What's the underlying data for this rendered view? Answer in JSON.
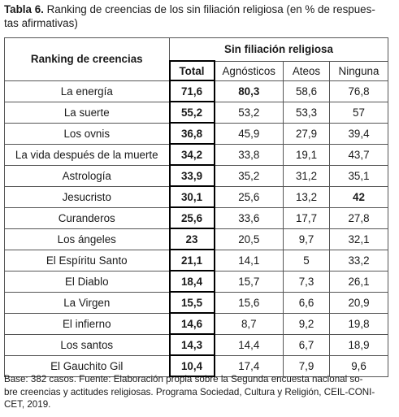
{
  "caption": {
    "label": "Tabla 6.",
    "lines": [
      "Ranking de creencias de los sin filiación religiosa (en % de respues-",
      "tas afirmativas)"
    ]
  },
  "table": {
    "row_header": "Ranking de creencias",
    "group_header": "Sin filiación religiosa",
    "columns": [
      "Total",
      "Agnósticos",
      "Ateos",
      "Ninguna"
    ],
    "rows": [
      [
        "La energía",
        "71,6",
        "80,3",
        "58,6",
        "76,8"
      ],
      [
        "La suerte",
        "55,2",
        "53,2",
        "53,3",
        "57"
      ],
      [
        "Los ovnis",
        "36,8",
        "45,9",
        "27,9",
        "39,4"
      ],
      [
        "La vida después de la muerte",
        "34,2",
        "33,8",
        "19,1",
        "43,7"
      ],
      [
        "Astrología",
        "33,9",
        "35,2",
        "31,2",
        "35,1"
      ],
      [
        "Jesucristo",
        "30,1",
        "25,6",
        "13,2",
        "42"
      ],
      [
        "Curanderos",
        "25,6",
        "33,6",
        "17,7",
        "27,8"
      ],
      [
        "Los ángeles",
        "23",
        "20,5",
        "9,7",
        "32,1"
      ],
      [
        "El Espíritu Santo",
        "21,1",
        "14,1",
        "5",
        "33,2"
      ],
      [
        "El Diablo",
        "18,4",
        "15,7",
        "7,3",
        "26,1"
      ],
      [
        "La Virgen",
        "15,5",
        "15,6",
        "6,6",
        "20,9"
      ],
      [
        "El infierno",
        "14,6",
        "8,7",
        "9,2",
        "19,8"
      ],
      [
        "Los santos",
        "14,3",
        "14,4",
        "6,7",
        "18,9"
      ],
      [
        "El Gauchito Gil",
        "10,4",
        "17,4",
        "7,9",
        "9,6"
      ]
    ]
  },
  "footnote": {
    "lines": [
      "Base: 382 casos. Fuente: Elaboración propia sobre la Segunda encuesta nacional so-",
      "bre creencias y actitudes religiosas. Programa Sociedad, Cultura y Religión, CEIL-CONI-",
      "CET, 2019."
    ]
  }
}
